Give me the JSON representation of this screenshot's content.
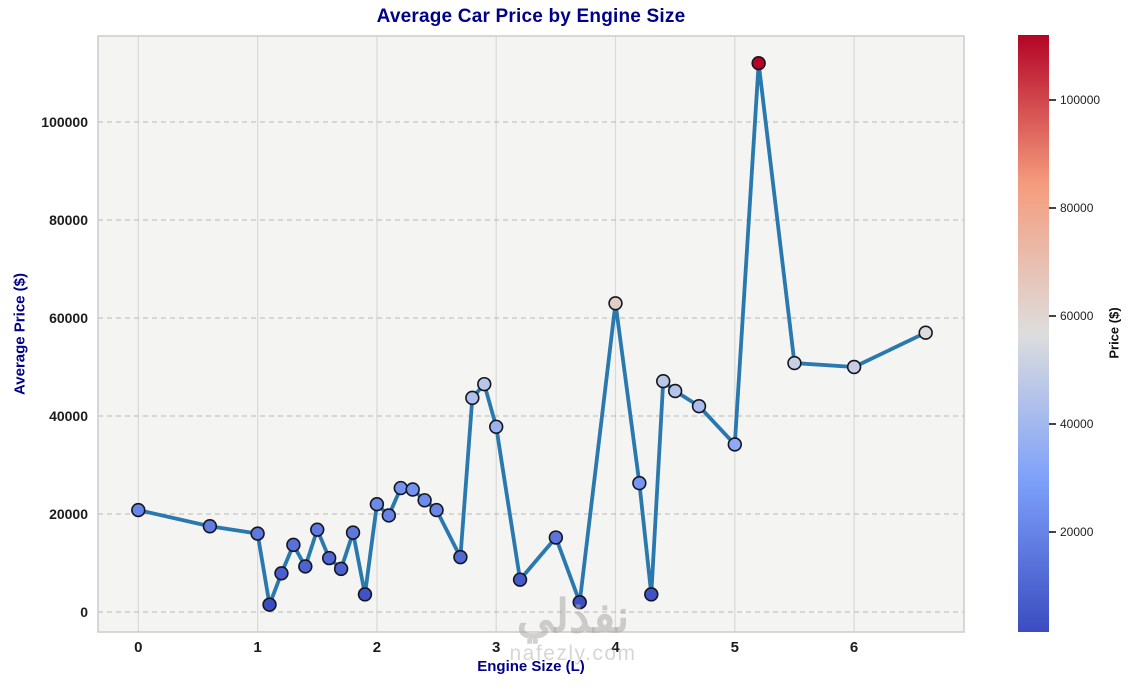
{
  "figure": {
    "watermark": {
      "arabic": "نفذلي",
      "domain": "nafezly.com"
    }
  },
  "chart_data": {
    "type": "line",
    "title": "Average Car Price by Engine Size",
    "xlabel": "Engine Size (L)",
    "ylabel": "Average Price ($)",
    "x": [
      0.0,
      0.6,
      1.0,
      1.1,
      1.2,
      1.3,
      1.4,
      1.5,
      1.6,
      1.7,
      1.8,
      1.9,
      2.0,
      2.1,
      2.2,
      2.3,
      2.4,
      2.5,
      2.7,
      2.8,
      2.9,
      3.0,
      3.2,
      3.5,
      3.7,
      4.0,
      4.2,
      4.3,
      4.4,
      4.5,
      4.7,
      5.0,
      5.2,
      5.5,
      6.0,
      6.6
    ],
    "y": [
      20800,
      17500,
      16000,
      1500,
      7900,
      13700,
      9300,
      16800,
      11000,
      8800,
      16200,
      3600,
      22000,
      19700,
      25300,
      25000,
      22800,
      20800,
      11200,
      43700,
      46500,
      37800,
      6600,
      15200,
      2000,
      63000,
      26300,
      3600,
      47100,
      45100,
      42000,
      34200,
      112000,
      50800,
      50000,
      57000
    ],
    "xticks": [
      0,
      1,
      2,
      3,
      4,
      5,
      6
    ],
    "yticks": [
      0,
      20000,
      40000,
      60000,
      80000,
      100000
    ],
    "xlim": [
      -0.34,
      6.92
    ],
    "ylim": [
      -4100,
      117600
    ],
    "grid": true,
    "legend": "none",
    "line_color": "#2979ae",
    "marker_edge_color": "#15151f",
    "marker_colormap": "coolwarm",
    "colormap_stops": [
      "#3B4CC0",
      "#7C9FF9",
      "#DDDDDD",
      "#F59C7D",
      "#B40426"
    ],
    "title_color": "#00008B",
    "axis_label_color": "#00008B",
    "colorbar": {
      "label": "Price ($)",
      "ticks": [
        20000,
        40000,
        60000,
        80000,
        100000
      ]
    }
  }
}
